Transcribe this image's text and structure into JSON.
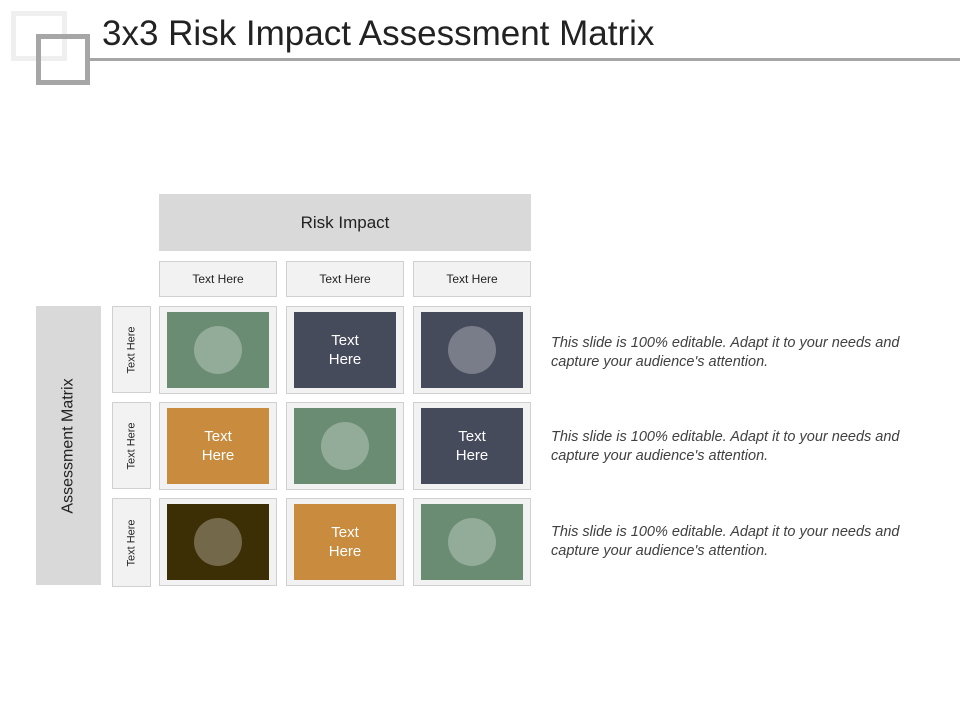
{
  "title": "3x3 Risk Impact Assessment Matrix",
  "matrix": {
    "top_label": "Risk Impact",
    "side_label": "Assessment Matrix",
    "col_headers": [
      "Text Here",
      "Text Here",
      "Text Here"
    ],
    "row_headers": [
      "Text Here",
      "Text Here",
      "Text Here"
    ],
    "cells": [
      [
        {
          "color": "#6a8c72",
          "label": "",
          "icon": "circle-icon"
        },
        {
          "color": "#464b5c",
          "label": "Text\nHere",
          "icon": ""
        },
        {
          "color": "#464b5c",
          "label": "",
          "icon": "circle-icon"
        }
      ],
      [
        {
          "color": "#c98b3d",
          "label": "Text\nHere",
          "icon": ""
        },
        {
          "color": "#6a8c72",
          "label": "",
          "icon": "circle-icon"
        },
        {
          "color": "#464b5c",
          "label": "Text\nHere",
          "icon": ""
        }
      ],
      [
        {
          "color": "#3d2f05",
          "label": "",
          "icon": "circle-icon"
        },
        {
          "color": "#c98b3d",
          "label": "Text\nHere",
          "icon": ""
        },
        {
          "color": "#6a8c72",
          "label": "",
          "icon": "circle-icon"
        }
      ]
    ]
  },
  "descriptions": [
    "This slide is 100% editable. Adapt it to your needs and capture your audience's attention.",
    "This slide is 100% editable. Adapt it to your needs and capture your audience's attention.",
    "This slide is 100% editable. Adapt it to your needs and capture your audience's attention."
  ]
}
